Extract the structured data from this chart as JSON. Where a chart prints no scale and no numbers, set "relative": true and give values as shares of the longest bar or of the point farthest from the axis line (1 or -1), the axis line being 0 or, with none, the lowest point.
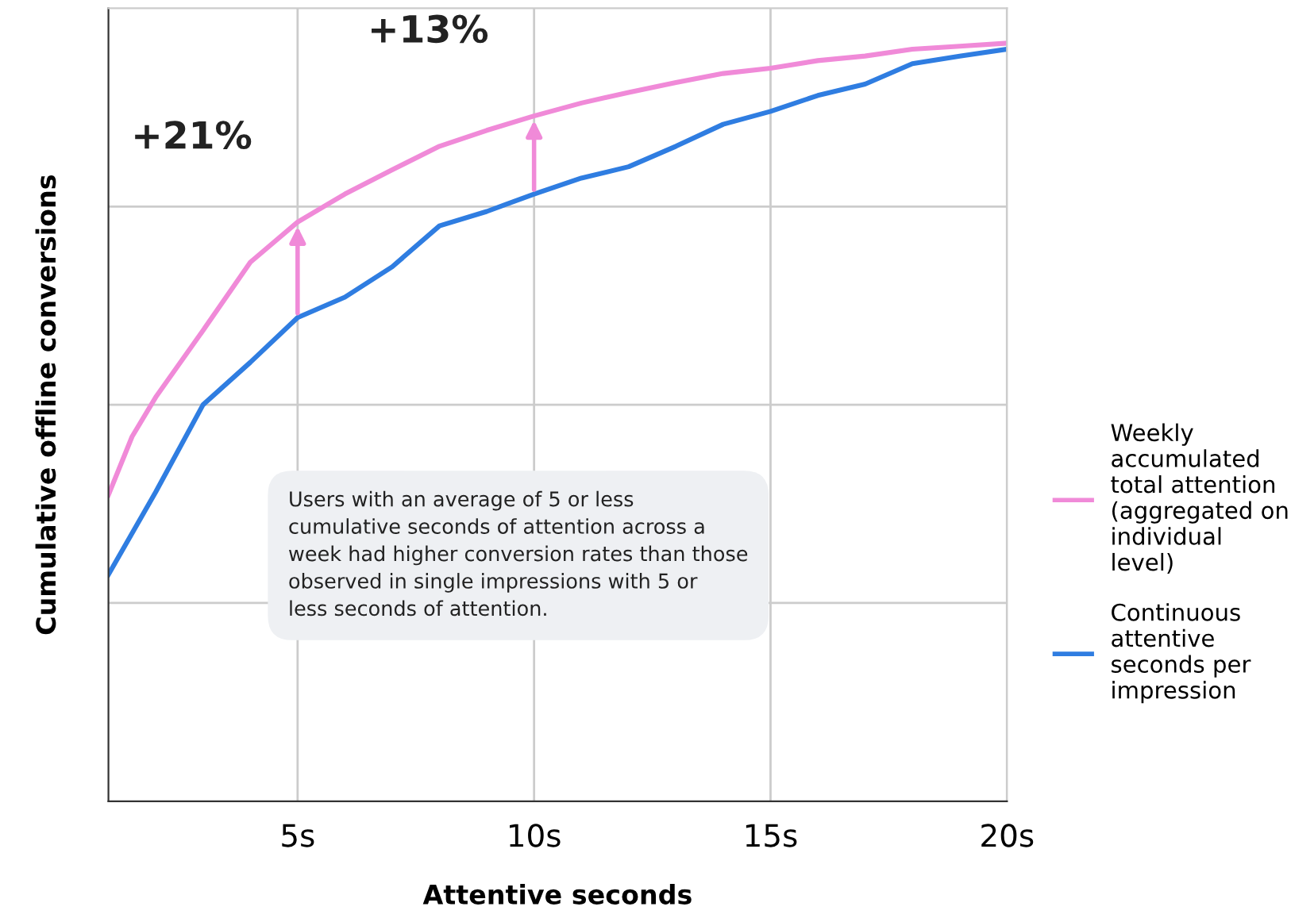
{
  "chart_data": {
    "type": "line",
    "relative": true,
    "xlabel": "Attentive seconds",
    "ylabel": "Cumulative offline conversions",
    "xlim": [
      1,
      20
    ],
    "xticks": [
      {
        "value": 5,
        "label": "5s"
      },
      {
        "value": 10,
        "label": "10s"
      },
      {
        "value": 15,
        "label": "15s"
      },
      {
        "value": 20,
        "label": "20s"
      }
    ],
    "grid": true,
    "legend": "right",
    "marker": "none",
    "line_style": "solid",
    "series": [
      {
        "name": "Weekly accumulated total attention (aggregated on individual level)",
        "color": "#f08ad8",
        "x": [
          1,
          1.5,
          2,
          3,
          4,
          5,
          6,
          7,
          8,
          9,
          10,
          11,
          12,
          13,
          14,
          15,
          16,
          17,
          18,
          19,
          20
        ],
        "values": [
          0.404,
          0.481,
          0.533,
          0.621,
          0.711,
          0.764,
          0.801,
          0.833,
          0.864,
          0.885,
          0.904,
          0.921,
          0.935,
          0.948,
          0.96,
          0.967,
          0.977,
          0.983,
          0.992,
          0.996,
          1
        ]
      },
      {
        "name": "Continuous attentive seconds per impression",
        "color": "#2f7de1",
        "x": [
          1,
          2,
          3,
          4,
          5,
          6,
          7,
          8,
          9,
          10,
          11,
          12,
          13,
          14,
          15,
          16,
          17,
          18,
          19,
          20
        ],
        "values": [
          0.299,
          0.408,
          0.523,
          0.579,
          0.638,
          0.665,
          0.705,
          0.759,
          0.778,
          0.801,
          0.822,
          0.837,
          0.864,
          0.893,
          0.91,
          0.931,
          0.946,
          0.973,
          0.983,
          0.992
        ]
      }
    ],
    "annotations": [
      {
        "text": "+21%",
        "x": 5,
        "y": 0.764
      },
      {
        "text": "+13%",
        "x": 10,
        "y": 0.904
      },
      "Users with an average of 5 or less cumulative seconds of attention across a week had higher conversion rates than those observed in single impressions with 5 or less seconds of attention."
    ]
  }
}
